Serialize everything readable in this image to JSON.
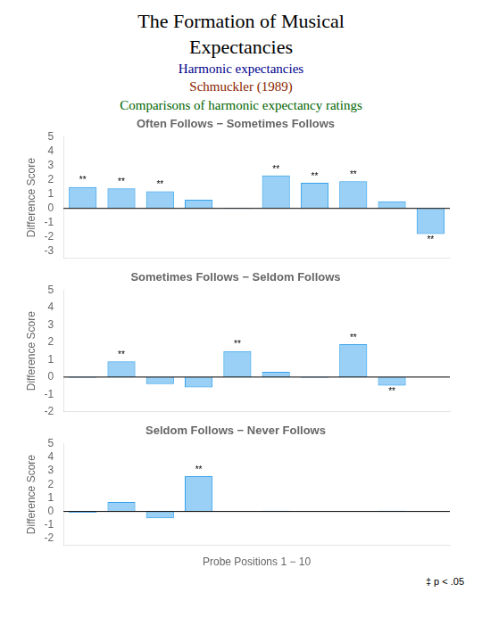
{
  "title": "The Formation of Musical\nExpectancies",
  "subtitles": [
    {
      "text": "Harmonic expectancies",
      "color": "#00008B"
    },
    {
      "text": "Schmuckler (1989)",
      "color": "#8B2500"
    },
    {
      "text": "Comparisons of harmonic expectancy ratings",
      "color": "#006400"
    }
  ],
  "footnote": "‡ p < .05",
  "chart_data": [
    {
      "type": "bar",
      "title": "Often Follows − Sometimes Follows",
      "categories": [
        null,
        null,
        null,
        null,
        null,
        null,
        null,
        null,
        null,
        null
      ],
      "values": [
        1.5,
        1.4,
        1.2,
        0.6,
        0.05,
        2.3,
        1.8,
        1.9,
        0.5,
        -1.8
      ],
      "annotations": [
        "**",
        "**",
        "**",
        null,
        null,
        "**",
        "**",
        "**",
        null,
        "**"
      ],
      "ylabel": "Difference Score",
      "ylim": [
        -3.5,
        5
      ],
      "yticks": [
        -3,
        -2,
        -1,
        0,
        1,
        2,
        3,
        4,
        5
      ],
      "grid": false,
      "tick_labels": "y"
    },
    {
      "type": "bar",
      "title": "Sometimes Follows − Seldom Follows",
      "categories": [
        null,
        null,
        null,
        null,
        null,
        null,
        null,
        null,
        null,
        null
      ],
      "values": [
        -0.05,
        0.9,
        -0.4,
        -0.6,
        1.5,
        0.3,
        -0.05,
        1.9,
        -0.5,
        0.0
      ],
      "annotations": [
        null,
        "**",
        null,
        null,
        "**",
        null,
        null,
        "**",
        "**",
        null
      ],
      "ylabel": "Difference Score",
      "ylim": [
        -2,
        5
      ],
      "yticks": [
        -2,
        -1,
        0,
        1,
        2,
        3,
        4,
        5
      ],
      "grid": false,
      "tick_labels": "y"
    },
    {
      "type": "bar",
      "title": "Seldom Follows − Never Follows",
      "categories": [
        null,
        null,
        null,
        null,
        null,
        null,
        null,
        null,
        null,
        null
      ],
      "values": [
        -0.1,
        0.7,
        -0.5,
        2.6,
        0.0,
        0.05,
        0.0,
        0.0,
        0.05,
        0.0
      ],
      "annotations": [
        null,
        null,
        null,
        "**",
        null,
        null,
        null,
        null,
        null,
        null
      ],
      "ylabel": "Difference Score",
      "xlabel": "Probe Positions 1 − 10",
      "ylim": [
        -2.5,
        5
      ],
      "yticks": [
        -2,
        -1,
        0,
        1,
        2,
        3,
        4,
        5
      ],
      "grid": false,
      "tick_labels": "y"
    }
  ]
}
